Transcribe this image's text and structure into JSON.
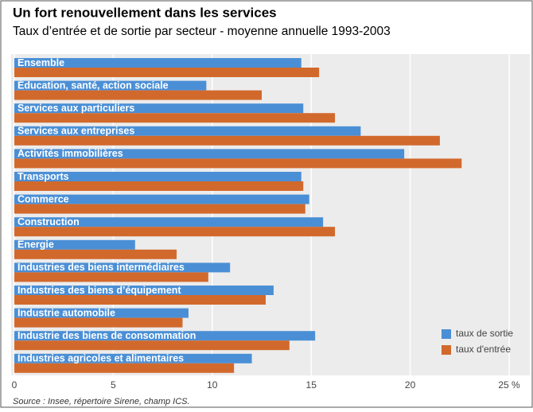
{
  "chart_data": {
    "type": "hbar",
    "title": "Un fort renouvellement dans les services",
    "subtitle": "Taux d’entrée et de sortie par secteur - moyenne annuelle 1993-2003",
    "source": "Source : Insee, répertoire Sirene, champ ICS.",
    "categories": [
      "Ensemble",
      "Éducation, santé, action sociale",
      "Services aux particuliers",
      "Services aux entreprises",
      "Activités immobilières",
      "Transports",
      "Commerce",
      "Construction",
      "Energie",
      "Industries des biens intermédiaires",
      "Industries des biens d’équipement",
      "Industrie automobile",
      "Industrie des biens de consommation",
      "Industries agricoles et alimentaires"
    ],
    "series": [
      {
        "name": "taux de sortie",
        "color": "#4a8fd6",
        "values": [
          14.5,
          9.7,
          14.6,
          17.5,
          19.7,
          14.5,
          14.9,
          15.6,
          6.1,
          10.9,
          13.1,
          8.8,
          15.2,
          12.0
        ]
      },
      {
        "name": "taux d'entrée",
        "color": "#d2692c",
        "values": [
          15.4,
          12.5,
          16.2,
          21.5,
          22.6,
          14.6,
          14.7,
          16.2,
          8.2,
          9.8,
          12.7,
          8.5,
          13.9,
          11.1
        ]
      }
    ],
    "xlim": [
      0,
      25
    ],
    "xticks": [
      0,
      5,
      10,
      15,
      20,
      {
        "value": 25,
        "label": "25 %"
      }
    ],
    "grid": true,
    "legend": "lower right"
  }
}
